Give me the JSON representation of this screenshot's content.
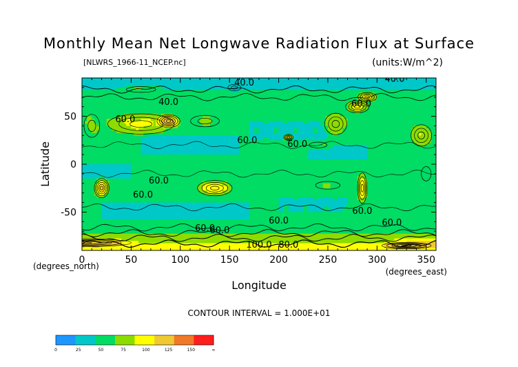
{
  "chart_data": {
    "type": "heatmap",
    "title": "Monthly Mean Net Longwave Radiation Flux at Surface",
    "subtitle_left": "[NLWRS_1966-11_NCEP.nc]",
    "units": "(units:W/m^2)",
    "xlabel": "Longitude",
    "ylabel": "Latitude",
    "x_unit_label": "(degrees_east)",
    "y_unit_label": "(degrees_north)",
    "xlim": [
      0,
      360
    ],
    "ylim": [
      -90,
      90
    ],
    "x_ticks": [
      0,
      50,
      100,
      150,
      200,
      250,
      300,
      350
    ],
    "y_ticks": [
      50,
      0,
      -50
    ],
    "contour_interval_label": "CONTOUR INTERVAL = 1.000E+01",
    "contour_labels": [
      {
        "text": "40.0",
        "lon": 165,
        "lat": 82
      },
      {
        "text": "40.0",
        "lon": 318,
        "lat": 86
      },
      {
        "text": "40.0",
        "lon": 88,
        "lat": 62
      },
      {
        "text": "60.0",
        "lon": 284,
        "lat": 60
      },
      {
        "text": "60.0",
        "lon": 44,
        "lat": 44
      },
      {
        "text": "60.0",
        "lon": 168,
        "lat": 22
      },
      {
        "text": "60.0",
        "lon": 219,
        "lat": 18
      },
      {
        "text": "60.0",
        "lon": 78,
        "lat": -20
      },
      {
        "text": "60.0",
        "lon": 62,
        "lat": -35
      },
      {
        "text": "60.0",
        "lon": 200,
        "lat": -62
      },
      {
        "text": "60.0",
        "lon": 125,
        "lat": -70
      },
      {
        "text": "60.0",
        "lon": 140,
        "lat": -72
      },
      {
        "text": "60.0",
        "lon": 285,
        "lat": -52
      },
      {
        "text": "60.0",
        "lon": 315,
        "lat": -64
      },
      {
        "text": "100.0",
        "lon": 180,
        "lat": -87
      },
      {
        "text": "80.0",
        "lon": 210,
        "lat": -87
      }
    ],
    "colorbar": {
      "levels": [
        "0",
        "25",
        "50",
        "75",
        "100",
        "125",
        "150",
        "∞"
      ],
      "colors": [
        "#1e96ff",
        "#00c8c8",
        "#00dc64",
        "#8cdc00",
        "#ffff00",
        "#f0c832",
        "#f07828",
        "#ff1e1e"
      ]
    },
    "regions": [
      {
        "lon": [
          0,
          360
        ],
        "lat": [
          -90,
          90
        ],
        "value": 55
      },
      {
        "lon": [
          20,
          170
        ],
        "lat": [
          -58,
          -40
        ],
        "value": 45
      },
      {
        "lon": [
          200,
          270
        ],
        "lat": [
          -50,
          -35
        ],
        "value": 47
      },
      {
        "lon": [
          60,
          160
        ],
        "lat": [
          10,
          30
        ],
        "value": 45
      },
      {
        "lon": [
          170,
          250
        ],
        "lat": [
          25,
          45
        ],
        "value": 47
      },
      {
        "lon": [
          230,
          290
        ],
        "lat": [
          5,
          20
        ],
        "value": 45
      },
      {
        "lon": [
          0,
          50
        ],
        "lat": [
          -15,
          0
        ],
        "value": 45
      },
      {
        "lon": [
          0,
          360
        ],
        "lat": [
          77,
          90
        ],
        "value": 38
      },
      {
        "lon": [
          0,
          360
        ],
        "lat": [
          -72,
          -65
        ],
        "value": 65
      },
      {
        "lon": [
          0,
          360
        ],
        "lat": [
          -83,
          -72
        ],
        "value": 95
      },
      {
        "lon": [
          0,
          360
        ],
        "lat": [
          -90,
          -83
        ],
        "value": 120
      }
    ],
    "blobs": [
      {
        "lon": 60,
        "lat": 42,
        "rlon": 45,
        "rlat": 14,
        "value": 105
      },
      {
        "lon": 88,
        "lat": 45,
        "rlon": 14,
        "rlat": 8,
        "value": 145
      },
      {
        "lon": 125,
        "lat": 45,
        "rlon": 22,
        "rlat": 9,
        "value": 80
      },
      {
        "lon": 10,
        "lat": 40,
        "rlon": 12,
        "rlat": 18,
        "value": 80
      },
      {
        "lon": 258,
        "lat": 42,
        "rlon": 15,
        "rlat": 15,
        "value": 95
      },
      {
        "lon": 280,
        "lat": 60,
        "rlon": 15,
        "rlat": 8,
        "value": 110
      },
      {
        "lon": 290,
        "lat": 70,
        "rlon": 12,
        "rlat": 6,
        "value": 120
      },
      {
        "lon": 345,
        "lat": 30,
        "rlon": 14,
        "rlat": 15,
        "value": 100
      },
      {
        "lon": 20,
        "lat": -25,
        "rlon": 9,
        "rlat": 12,
        "value": 130
      },
      {
        "lon": 135,
        "lat": -25,
        "rlon": 22,
        "rlat": 10,
        "value": 115
      },
      {
        "lon": 285,
        "lat": -25,
        "rlon": 6,
        "rlat": 20,
        "value": 120
      },
      {
        "lon": 250,
        "lat": -22,
        "rlon": 25,
        "rlat": 8,
        "value": 75
      },
      {
        "lon": 240,
        "lat": 20,
        "rlon": 18,
        "rlat": 6,
        "value": 75
      },
      {
        "lon": 210,
        "lat": 28,
        "rlon": 6,
        "rlat": 4,
        "value": 110
      },
      {
        "lon": 155,
        "lat": 80,
        "rlon": 10,
        "rlat": 5,
        "value": 25
      },
      {
        "lon": 60,
        "lat": 78,
        "rlon": 30,
        "rlat": 6,
        "value": 75
      },
      {
        "lon": 350,
        "lat": -10,
        "rlon": 10,
        "rlat": 15,
        "value": 75
      },
      {
        "lon": 0,
        "lat": -82,
        "rlon": 60,
        "rlat": 5,
        "value": 140
      },
      {
        "lon": 330,
        "lat": -85,
        "rlon": 30,
        "rlat": 4,
        "value": 140
      }
    ]
  }
}
